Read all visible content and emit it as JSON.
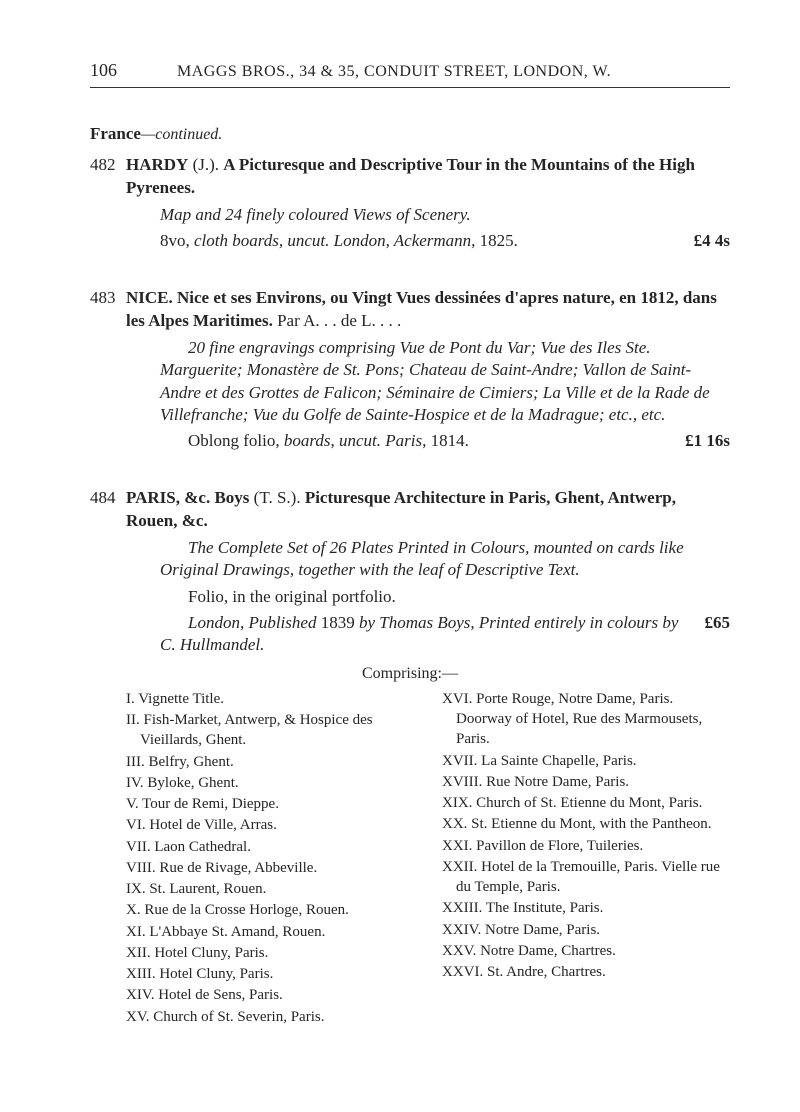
{
  "page_number": "106",
  "running_head": "MAGGS BROS., 34 & 35, CONDUIT STREET, LONDON, W.",
  "france_heading_prefix": "France",
  "france_heading_suffix": "—continued.",
  "entries": {
    "e482": {
      "num": "482",
      "title_bold1": "HARDY",
      "title_plain1": " (J.).   ",
      "title_bold2": "A Picturesque and Descriptive Tour in the Mountains of the High Pyrenees.",
      "line1_italic": "Map and 24 finely coloured Views of Scenery.",
      "line2_pre": "8vo, ",
      "line2_italic": "cloth boards, uncut.   London, Ackermann,",
      "line2_post": " 1825.",
      "price": "£4 4s"
    },
    "e483": {
      "num": "483",
      "title_bold1": "NICE.   Nice et ses Environs, ou Vingt Vues dessinées d'apres nature, en 1812, dans les Alpes Maritimes.",
      "title_plain_tail": "   Par A.  .  .  de L.  .  .  .",
      "para_italic": "20 fine engravings comprising Vue de Pont du Var; Vue des Iles Ste. Marguerite; Monastère de St. Pons; Chateau de Saint-Andre; Vallon de Saint-Andre et des Grottes de Falicon; Séminaire de Cimiers; La Ville et de la Rade de Villefranche; Vue du Golfe de Sainte-Hospice et de la Madrague; etc., etc.",
      "line2_pre": "Oblong folio, ",
      "line2_italic": "boards, uncut.   Paris,",
      "line2_post": " 1814.",
      "price": "£1 16s"
    },
    "e484": {
      "num": "484",
      "title_bold1": "PARIS, &c.   Boys",
      "title_plain_mid": " (T. S.).    ",
      "title_bold2": "Picturesque Architecture in Paris, Ghent, Antwerp, Rouen, &c.",
      "line1_italic": "The Complete Set of 26 Plates Printed in Colours, mounted on cards like Original Drawings, together with the leaf of Descriptive Text.",
      "line2_plain": "Folio, in the original portfolio.",
      "line3_italic_a": "London, Published ",
      "line3_plain": "1839 ",
      "line3_italic_b": "by Thomas Boys, Printed entirely in colours by C. Hullmandel.",
      "price": "£65",
      "comprising": "Comprising:—",
      "col_left": [
        "I. Vignette Title.",
        "II. Fish-Market, Antwerp, & Hospice des Vieillards, Ghent.",
        "III. Belfry, Ghent.",
        "IV. Byloke, Ghent.",
        "V. Tour de Remi, Dieppe.",
        "VI. Hotel de Ville, Arras.",
        "VII. Laon Cathedral.",
        "VIII. Rue de Rivage, Abbeville.",
        "IX. St. Laurent, Rouen.",
        "X. Rue de la Crosse Horloge, Rouen.",
        "XI. L'Abbaye St. Amand, Rouen.",
        "XII. Hotel Cluny, Paris.",
        "XIII. Hotel Cluny, Paris.",
        "XIV. Hotel de Sens, Paris.",
        "XV. Church of St. Severin, Paris."
      ],
      "col_right": [
        "XVI. Porte Rouge, Notre Dame, Paris. Doorway of Hotel, Rue des Marmousets, Paris.",
        "XVII. La Sainte Chapelle, Paris.",
        "XVIII. Rue Notre Dame, Paris.",
        "XIX. Church of St. Etienne du Mont, Paris.",
        "XX. St. Etienne du Mont, with the Pantheon.",
        "XXI. Pavillon de Flore, Tuileries.",
        "XXII. Hotel de la Tremouille, Paris. Vielle rue du Temple, Paris.",
        "XXIII. The Institute, Paris.",
        "XXIV. Notre Dame, Paris.",
        "XXV. Notre Dame, Chartres.",
        "XXVI. St. Andre, Chartres."
      ]
    }
  }
}
